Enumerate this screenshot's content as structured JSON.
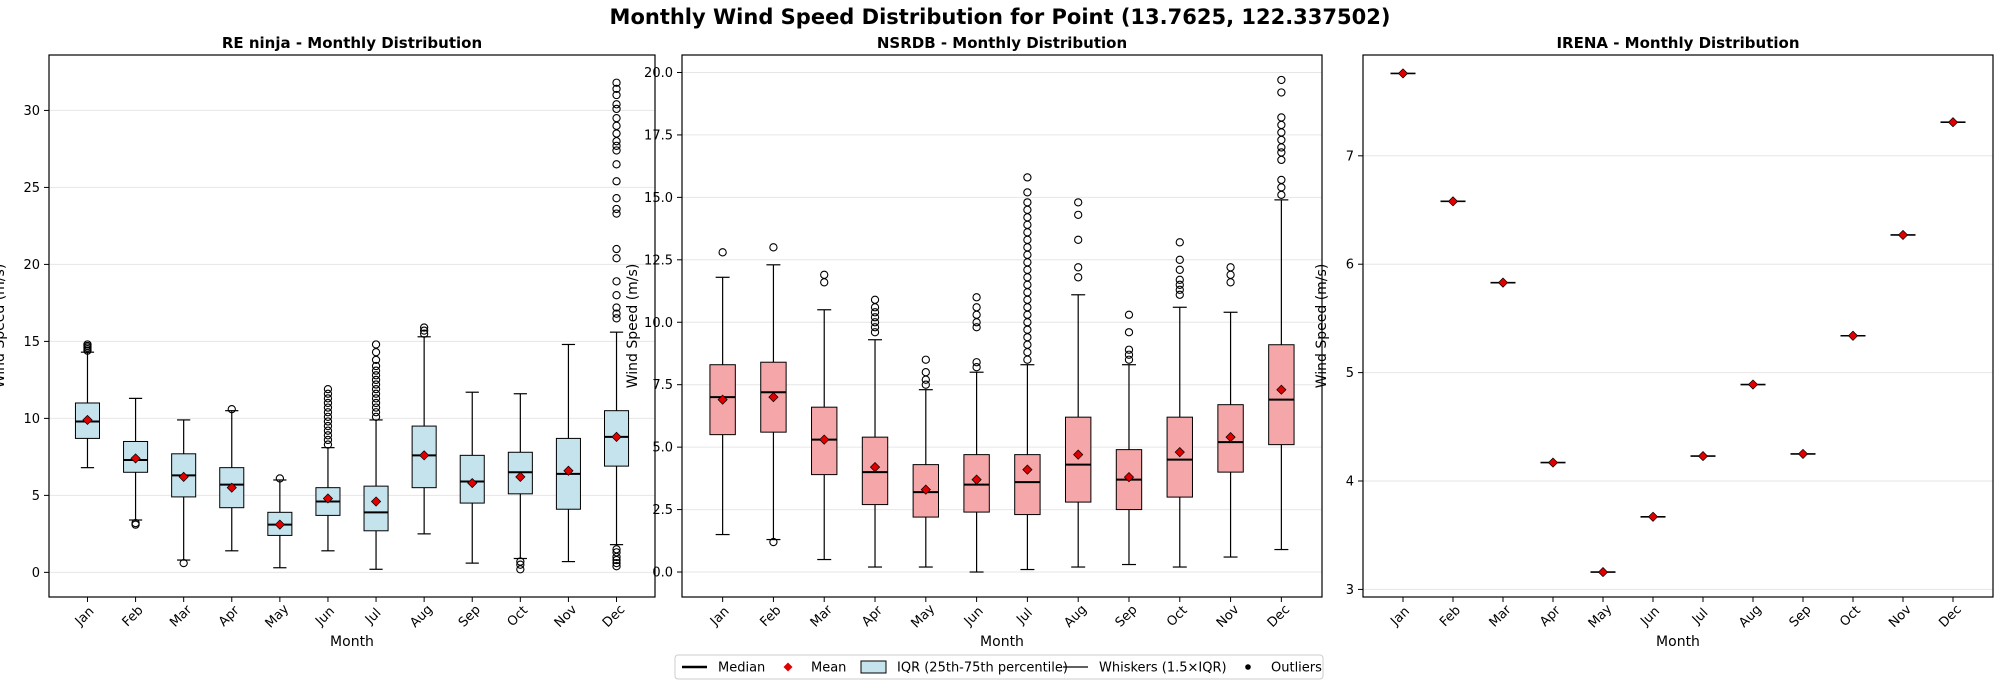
{
  "figure": {
    "title": "Monthly Wind Speed Distribution for Point (13.7625, 122.337502)"
  },
  "legend": {
    "items": [
      {
        "kind": "median",
        "label": "Median"
      },
      {
        "kind": "mean",
        "label": "Mean"
      },
      {
        "kind": "iqr",
        "label": "IQR (25th-75th percentile)"
      },
      {
        "kind": "whiskers",
        "label": "Whiskers (1.5×IQR)"
      },
      {
        "kind": "outliers",
        "label": "Outliers"
      }
    ]
  },
  "colors": {
    "re_ninja_box": "#c5e3ed",
    "nsrdb_box": "#f4a6a8",
    "mean_marker": "#e00000",
    "grid": "#e6e6e6"
  },
  "chart_data": [
    {
      "type": "box",
      "title": "RE ninja - Monthly Distribution",
      "xlabel": "Month",
      "ylabel": "Wind Speed (m/s)",
      "ylim": [
        -1.6,
        33.6
      ],
      "yticks": [
        0,
        5,
        10,
        15,
        20,
        25,
        30
      ],
      "grid": "horizontal",
      "categories": [
        "Jan",
        "Feb",
        "Mar",
        "Apr",
        "May",
        "Jun",
        "Jul",
        "Aug",
        "Sep",
        "Oct",
        "Nov",
        "Dec"
      ],
      "box_color": "#c5e3ed",
      "boxes": [
        {
          "whislo": 6.8,
          "q1": 8.7,
          "med": 9.8,
          "q3": 11.0,
          "whishi": 14.3,
          "mean": 9.9,
          "fliers": [
            14.4,
            14.5,
            14.6,
            14.7,
            14.8
          ]
        },
        {
          "whislo": 3.4,
          "q1": 6.5,
          "med": 7.3,
          "q3": 8.5,
          "whishi": 11.3,
          "mean": 7.4,
          "fliers": [
            3.2,
            3.1
          ]
        },
        {
          "whislo": 0.8,
          "q1": 4.9,
          "med": 6.3,
          "q3": 7.7,
          "whishi": 9.9,
          "mean": 6.2,
          "fliers": [
            0.6
          ]
        },
        {
          "whislo": 1.4,
          "q1": 4.2,
          "med": 5.7,
          "q3": 6.8,
          "whishi": 10.5,
          "mean": 5.5,
          "fliers": [
            10.6
          ]
        },
        {
          "whislo": 0.3,
          "q1": 2.4,
          "med": 3.1,
          "q3": 3.9,
          "whishi": 6.0,
          "mean": 3.1,
          "fliers": [
            6.1
          ]
        },
        {
          "whislo": 1.4,
          "q1": 3.7,
          "med": 4.6,
          "q3": 5.5,
          "whishi": 8.1,
          "mean": 4.8,
          "fliers": [
            8.3,
            8.6,
            8.9,
            9.2,
            9.5,
            9.8,
            10.1,
            10.4,
            10.7,
            11.0,
            11.3,
            11.6,
            11.9
          ]
        },
        {
          "whislo": 0.2,
          "q1": 2.7,
          "med": 3.9,
          "q3": 5.6,
          "whishi": 9.9,
          "mean": 4.6,
          "fliers": [
            10.1,
            10.4,
            10.7,
            11.0,
            11.3,
            11.6,
            11.9,
            12.2,
            12.5,
            12.8,
            13.1,
            13.4,
            13.8,
            14.3,
            14.8
          ]
        },
        {
          "whislo": 2.5,
          "q1": 5.5,
          "med": 7.6,
          "q3": 9.5,
          "whishi": 15.3,
          "mean": 7.6,
          "fliers": [
            15.5,
            15.7,
            15.9
          ]
        },
        {
          "whislo": 0.6,
          "q1": 4.5,
          "med": 5.9,
          "q3": 7.6,
          "whishi": 11.7,
          "mean": 5.8,
          "fliers": []
        },
        {
          "whislo": 0.9,
          "q1": 5.1,
          "med": 6.5,
          "q3": 7.8,
          "whishi": 11.6,
          "mean": 6.2,
          "fliers": [
            0.7,
            0.5,
            0.2
          ]
        },
        {
          "whislo": 0.7,
          "q1": 4.1,
          "med": 6.4,
          "q3": 8.7,
          "whishi": 14.8,
          "mean": 6.6,
          "fliers": []
        },
        {
          "whislo": 1.8,
          "q1": 6.9,
          "med": 8.8,
          "q3": 10.5,
          "whishi": 15.6,
          "mean": 8.8,
          "fliers": [
            16.5,
            16.8,
            17.2,
            18.0,
            18.9,
            20.4,
            21.0,
            23.3,
            23.6,
            24.3,
            25.4,
            26.5,
            27.4,
            27.7,
            28.0,
            28.5,
            29.0,
            29.5,
            30.1,
            30.4,
            31.0,
            31.4,
            31.8,
            1.5,
            1.3,
            1.0,
            0.8,
            0.6,
            0.4
          ]
        }
      ]
    },
    {
      "type": "box",
      "title": "NSRDB - Monthly Distribution",
      "xlabel": "Month",
      "ylabel": "Wind Speed (m/s)",
      "ylim": [
        -1.0,
        20.7
      ],
      "yticks": [
        0.0,
        2.5,
        5.0,
        7.5,
        10.0,
        12.5,
        15.0,
        17.5,
        20.0
      ],
      "ytick_labels": [
        "0.0",
        "2.5",
        "5.0",
        "7.5",
        "10.0",
        "12.5",
        "15.0",
        "17.5",
        "20.0"
      ],
      "grid": "horizontal",
      "categories": [
        "Jan",
        "Feb",
        "Mar",
        "Apr",
        "May",
        "Jun",
        "Jul",
        "Aug",
        "Sep",
        "Oct",
        "Nov",
        "Dec"
      ],
      "box_color": "#f4a6a8",
      "boxes": [
        {
          "whislo": 1.5,
          "q1": 5.5,
          "med": 7.0,
          "q3": 8.3,
          "whishi": 11.8,
          "mean": 6.9,
          "fliers": [
            12.8
          ]
        },
        {
          "whislo": 1.3,
          "q1": 5.6,
          "med": 7.2,
          "q3": 8.4,
          "whishi": 12.3,
          "mean": 7.0,
          "fliers": [
            1.2,
            13.0
          ]
        },
        {
          "whislo": 0.5,
          "q1": 3.9,
          "med": 5.3,
          "q3": 6.6,
          "whishi": 10.5,
          "mean": 5.3,
          "fliers": [
            11.6,
            11.9
          ]
        },
        {
          "whislo": 0.2,
          "q1": 2.7,
          "med": 4.0,
          "q3": 5.4,
          "whishi": 9.3,
          "mean": 4.2,
          "fliers": [
            9.6,
            9.8,
            10.0,
            10.2,
            10.4,
            10.6,
            10.9
          ]
        },
        {
          "whislo": 0.2,
          "q1": 2.2,
          "med": 3.2,
          "q3": 4.3,
          "whishi": 7.3,
          "mean": 3.3,
          "fliers": [
            7.5,
            7.7,
            8.0,
            8.5
          ]
        },
        {
          "whislo": 0.0,
          "q1": 2.4,
          "med": 3.5,
          "q3": 4.7,
          "whishi": 8.0,
          "mean": 3.7,
          "fliers": [
            8.2,
            8.4,
            9.8,
            10.0,
            10.3,
            10.6,
            11.0
          ]
        },
        {
          "whislo": 0.1,
          "q1": 2.3,
          "med": 3.6,
          "q3": 4.7,
          "whishi": 8.3,
          "mean": 4.1,
          "fliers": [
            8.5,
            8.8,
            9.1,
            9.4,
            9.7,
            10.0,
            10.3,
            10.6,
            10.9,
            11.2,
            11.5,
            11.8,
            12.1,
            12.4,
            12.7,
            13.0,
            13.3,
            13.6,
            13.9,
            14.2,
            14.5,
            14.8,
            15.2,
            15.8
          ]
        },
        {
          "whislo": 0.2,
          "q1": 2.8,
          "med": 4.3,
          "q3": 6.2,
          "whishi": 11.1,
          "mean": 4.7,
          "fliers": [
            11.8,
            12.2,
            13.3,
            14.3,
            14.8
          ]
        },
        {
          "whislo": 0.3,
          "q1": 2.5,
          "med": 3.7,
          "q3": 4.9,
          "whishi": 8.3,
          "mean": 3.8,
          "fliers": [
            8.5,
            8.7,
            8.9,
            9.6,
            10.3
          ]
        },
        {
          "whislo": 0.2,
          "q1": 3.0,
          "med": 4.5,
          "q3": 6.2,
          "whishi": 10.6,
          "mean": 4.8,
          "fliers": [
            11.1,
            11.3,
            11.5,
            11.7,
            12.1,
            12.5,
            13.2
          ]
        },
        {
          "whislo": 0.6,
          "q1": 4.0,
          "med": 5.2,
          "q3": 6.7,
          "whishi": 10.4,
          "mean": 5.4,
          "fliers": [
            11.6,
            11.9,
            12.2
          ]
        },
        {
          "whislo": 0.9,
          "q1": 5.1,
          "med": 6.9,
          "q3": 9.1,
          "whishi": 14.9,
          "mean": 7.3,
          "fliers": [
            15.1,
            15.4,
            15.7,
            16.5,
            16.8,
            17.0,
            17.3,
            17.6,
            17.9,
            18.2,
            19.2,
            19.7
          ]
        }
      ]
    },
    {
      "type": "box",
      "title": "IRENA - Monthly Distribution",
      "xlabel": "Month",
      "ylabel": "Wind Speed (m/s)",
      "ylim": [
        2.93,
        7.93
      ],
      "yticks": [
        3,
        4,
        5,
        6,
        7
      ],
      "grid": "horizontal",
      "categories": [
        "Jan",
        "Feb",
        "Mar",
        "Apr",
        "May",
        "Jun",
        "Jul",
        "Aug",
        "Sep",
        "Oct",
        "Nov",
        "Dec"
      ],
      "box_color": "#c5e3ed",
      "values": [
        7.76,
        6.58,
        5.83,
        4.17,
        3.16,
        3.67,
        4.23,
        4.89,
        4.25,
        5.34,
        6.27,
        7.31
      ]
    }
  ]
}
